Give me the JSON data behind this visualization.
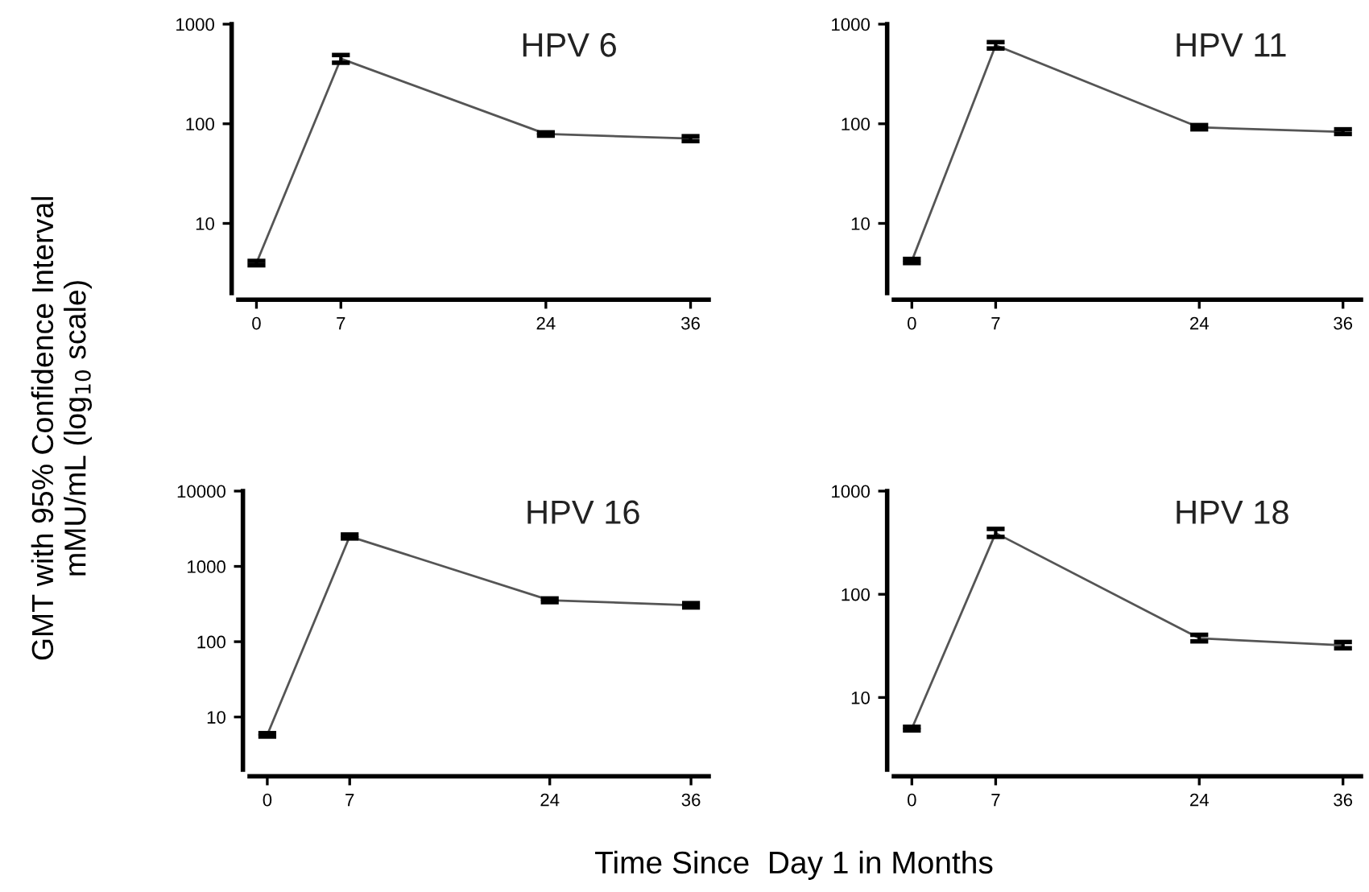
{
  "chart_data": [
    {
      "type": "line",
      "title": "HPV 6",
      "ylabel": "GMT with 95% Confidence Interval\nmMU/mL (log$_{10}$ scale)",
      "x": [
        0,
        7,
        24,
        36
      ],
      "log": true,
      "ylim": [
        2,
        1000
      ],
      "yticks": [
        10,
        100,
        1000
      ],
      "xlim": [
        -1.5,
        37.5
      ],
      "xticks": [
        0,
        7,
        24,
        36
      ],
      "marker": "none",
      "line_style": "solid",
      "grid": false,
      "legend": false,
      "series": [
        {
          "color": "#555555",
          "values": [
            4.0,
            450,
            79,
            71
          ],
          "errors": [
            [
              3.8,
              4.2
            ],
            [
              410,
              490
            ],
            [
              76,
              82
            ],
            [
              67,
              75
            ]
          ]
        }
      ]
    },
    {
      "type": "line",
      "title": "HPV 11",
      "x": [
        0,
        7,
        24,
        36
      ],
      "log": true,
      "ylim": [
        2,
        1000
      ],
      "yticks": [
        10,
        100,
        1000
      ],
      "xlim": [
        -1.5,
        37.5
      ],
      "xticks": [
        0,
        7,
        24,
        36
      ],
      "marker": "none",
      "line_style": "solid",
      "grid": false,
      "legend": false,
      "series": [
        {
          "color": "#555555",
          "values": [
            4.2,
            614,
            92,
            83
          ],
          "errors": [
            [
              4.0,
              4.4
            ],
            [
              570,
              660
            ],
            [
              88,
              97
            ],
            [
              79,
              88
            ]
          ]
        }
      ]
    },
    {
      "type": "line",
      "title": "HPV 16",
      "xlabel": "Time Since  Day 1 in Months",
      "x": [
        0,
        7,
        24,
        36
      ],
      "log": true,
      "ylim": [
        2,
        10000
      ],
      "yticks": [
        10,
        100,
        1000,
        10000
      ],
      "xlim": [
        -1.5,
        37.5
      ],
      "xticks": [
        0,
        7,
        24,
        36
      ],
      "marker": "none",
      "line_style": "solid",
      "grid": false,
      "legend": false,
      "series": [
        {
          "color": "#555555",
          "values": [
            5.8,
            2500,
            355,
            305
          ],
          "errors": [
            [
              5.5,
              6.1
            ],
            [
              2350,
              2650
            ],
            [
              335,
              375
            ],
            [
              285,
              325
            ]
          ]
        }
      ]
    },
    {
      "type": "line",
      "title": "HPV 18",
      "x": [
        0,
        7,
        24,
        36
      ],
      "log": true,
      "ylim": [
        2,
        1000
      ],
      "yticks": [
        10,
        100,
        1000
      ],
      "xlim": [
        -1.5,
        37.5
      ],
      "xticks": [
        0,
        7,
        24,
        36
      ],
      "marker": "none",
      "line_style": "solid",
      "grid": false,
      "legend": false,
      "series": [
        {
          "color": "#555555",
          "values": [
            5.0,
            392,
            37.5,
            32
          ],
          "errors": [
            [
              4.8,
              5.2
            ],
            [
              360,
              430
            ],
            [
              35,
              40.5
            ],
            [
              30,
              34.5
            ]
          ]
        }
      ]
    }
  ]
}
